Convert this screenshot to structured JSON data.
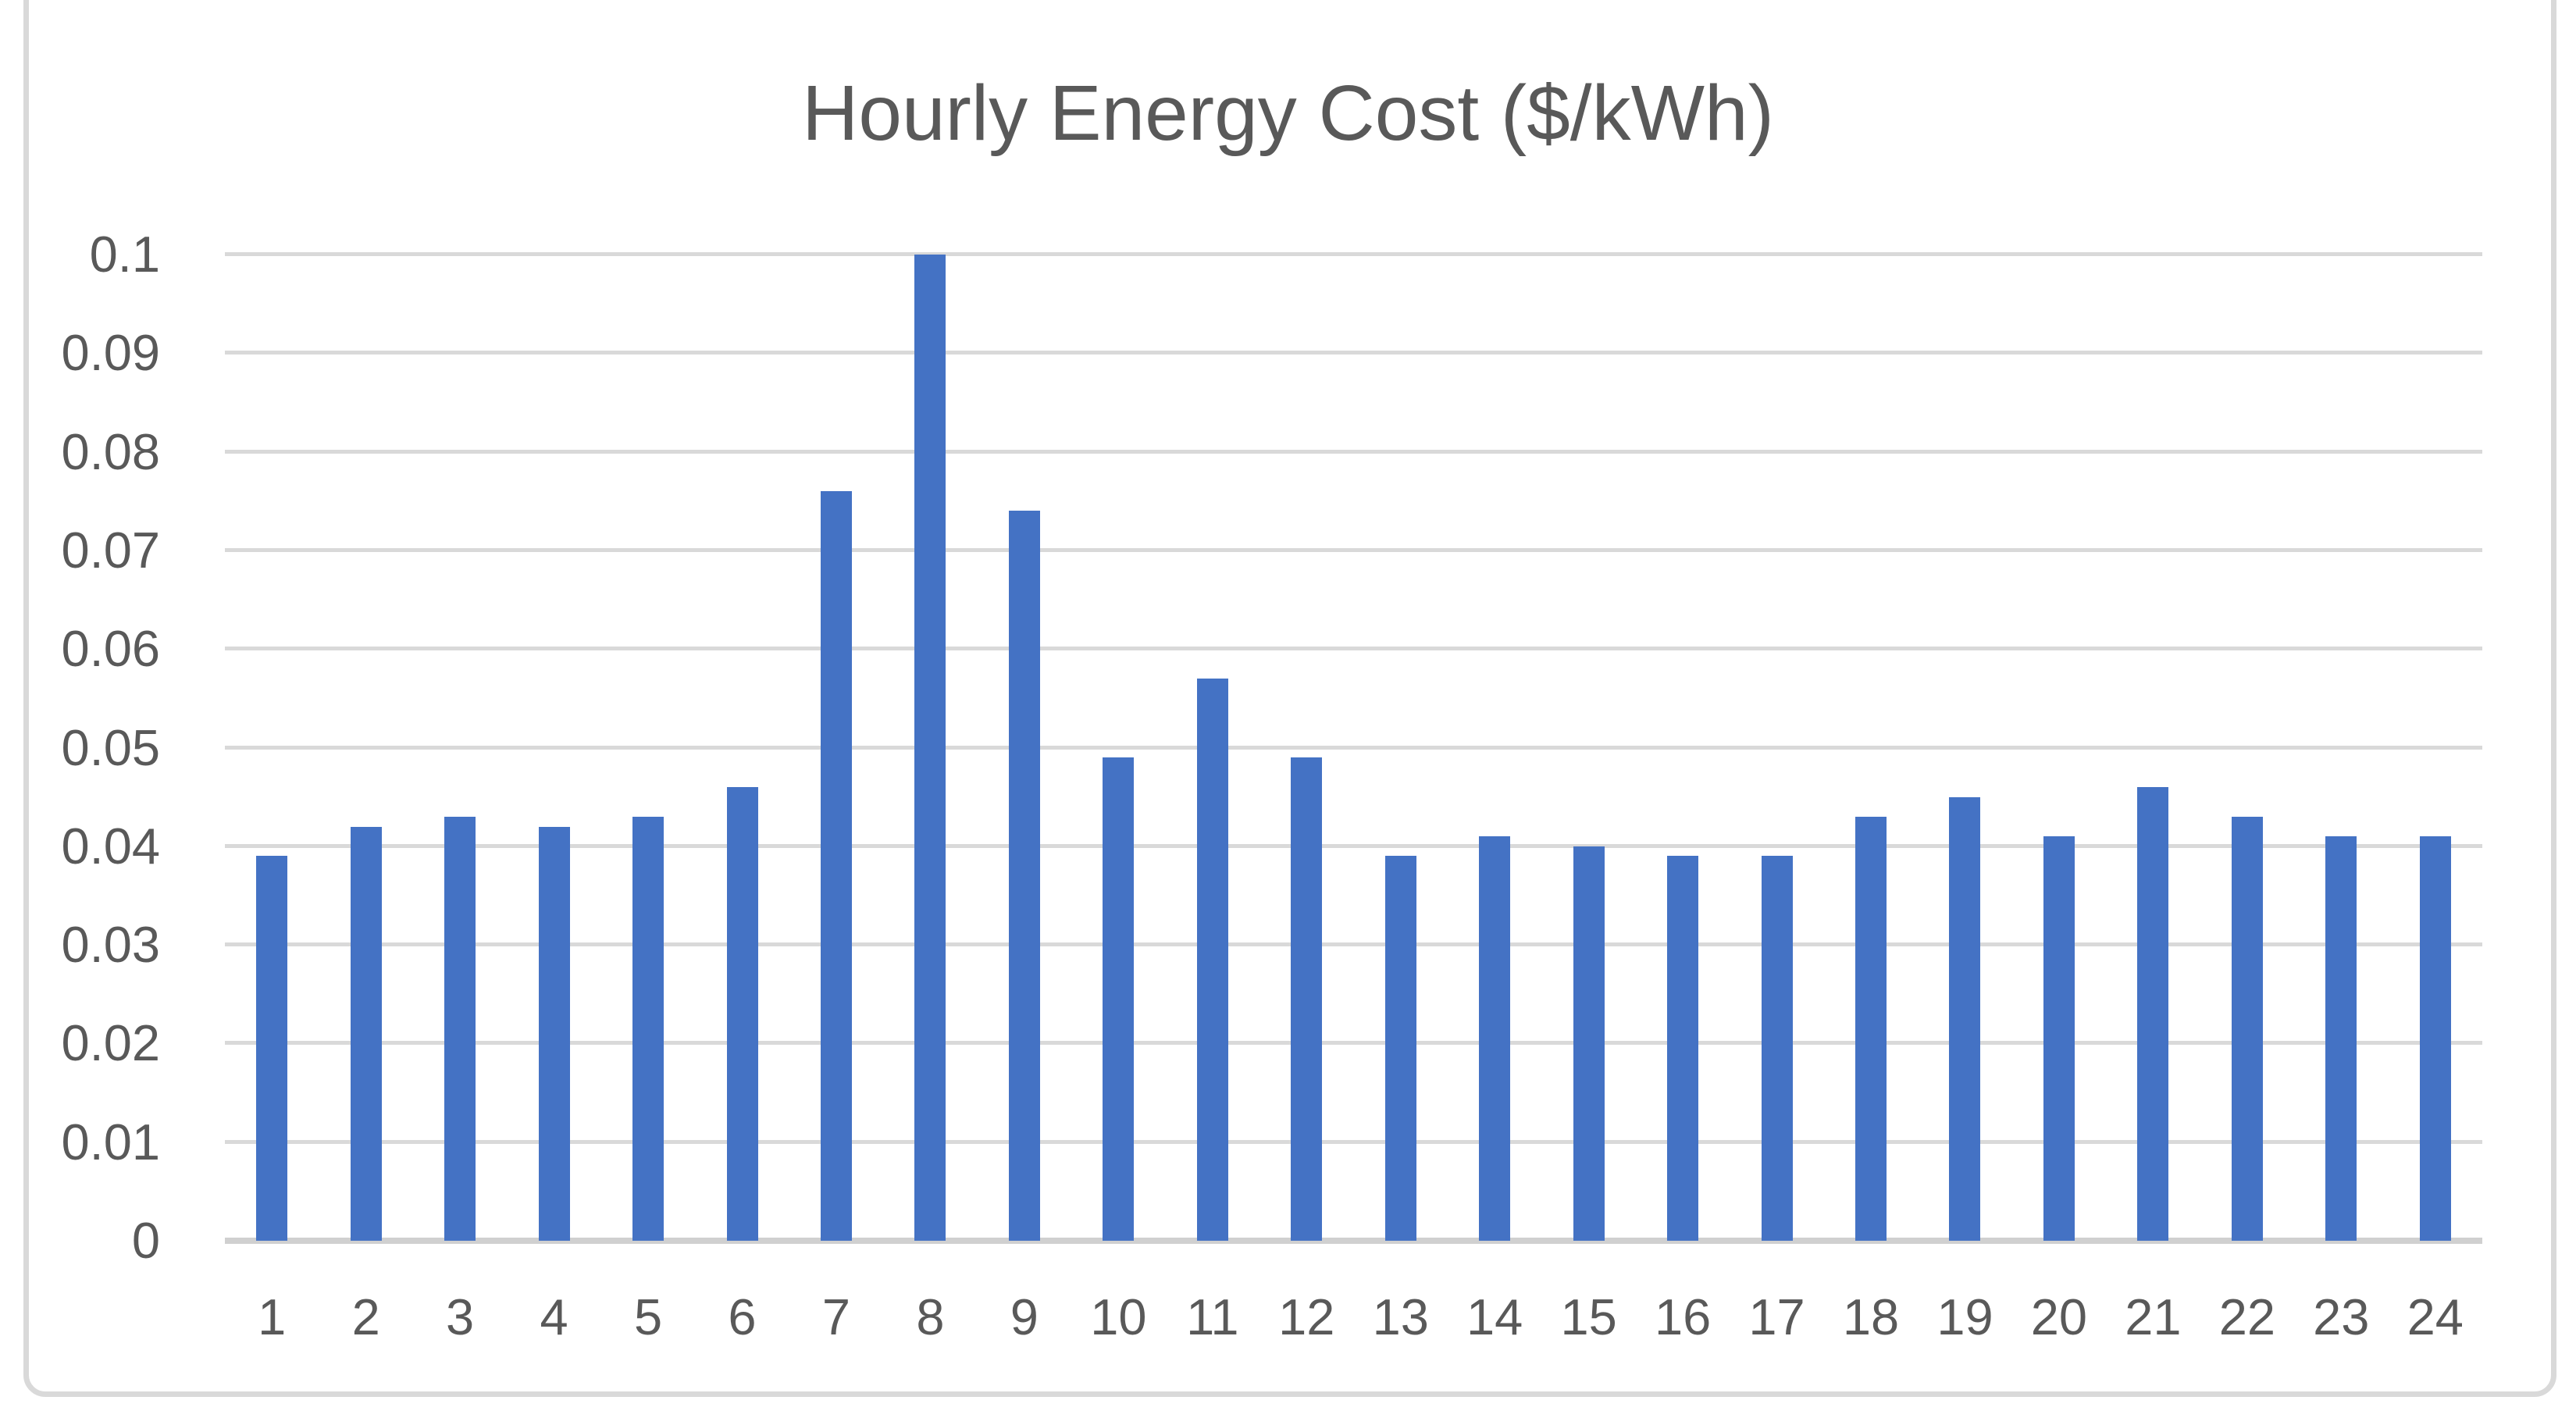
{
  "chart_data": {
    "type": "bar",
    "title": "Hourly Energy Cost ($/kWh)",
    "categories": [
      "1",
      "2",
      "3",
      "4",
      "5",
      "6",
      "7",
      "8",
      "9",
      "10",
      "11",
      "12",
      "13",
      "14",
      "15",
      "16",
      "17",
      "18",
      "19",
      "20",
      "21",
      "22",
      "23",
      "24"
    ],
    "values": [
      0.039,
      0.042,
      0.043,
      0.042,
      0.043,
      0.046,
      0.076,
      0.1,
      0.074,
      0.049,
      0.057,
      0.049,
      0.039,
      0.041,
      0.04,
      0.039,
      0.039,
      0.043,
      0.045,
      0.041,
      0.046,
      0.043,
      0.041,
      0.041
    ],
    "xlabel": "",
    "ylabel": "",
    "ylim": [
      0,
      0.1
    ],
    "y_ticks": [
      {
        "label": "0",
        "value": 0
      },
      {
        "label": "0.01",
        "value": 0.01
      },
      {
        "label": "0.02",
        "value": 0.02
      },
      {
        "label": "0.03",
        "value": 0.03
      },
      {
        "label": "0.04",
        "value": 0.04
      },
      {
        "label": "0.05",
        "value": 0.05
      },
      {
        "label": "0.06",
        "value": 0.06
      },
      {
        "label": "0.07",
        "value": 0.07
      },
      {
        "label": "0.08",
        "value": 0.08
      },
      {
        "label": "0.09",
        "value": 0.09
      },
      {
        "label": "0.1",
        "value": 0.1
      }
    ],
    "grid": "horizontal",
    "legend": "none",
    "colors": {
      "bar": "#4472C4",
      "gridline": "#D9D9D9",
      "axis_line": "#D0D0D0",
      "text": "#595959",
      "chart_border": "#D9D9D9",
      "background": "#FFFFFF"
    }
  }
}
